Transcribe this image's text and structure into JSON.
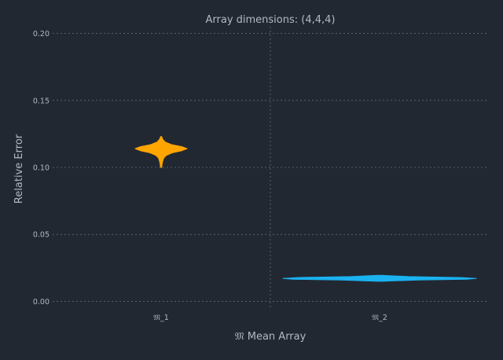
{
  "chart_data": {
    "type": "violin",
    "title": "Array dimensions: (4,4,4)",
    "xlabel": "𝔐 Mean Array",
    "ylabel": "Relative Error",
    "categories": [
      "𝔐_1",
      "𝔐_2"
    ],
    "ylim": [
      -0.005,
      0.205
    ],
    "yticks": [
      0.0,
      0.05,
      0.1,
      0.15,
      0.2
    ],
    "ytick_labels": [
      "0.00",
      "0.05",
      "0.10",
      "0.15",
      "0.20"
    ],
    "grid": true,
    "series": [
      {
        "category": "𝔐_1",
        "color": "#ffa500",
        "min": 0.1,
        "max": 0.123,
        "profile": [
          [
            0.1,
            0.02
          ],
          [
            0.104,
            0.05
          ],
          [
            0.107,
            0.1
          ],
          [
            0.109,
            0.2
          ],
          [
            0.111,
            0.45
          ],
          [
            0.1125,
            0.8
          ],
          [
            0.114,
            1.0
          ],
          [
            0.1155,
            0.8
          ],
          [
            0.117,
            0.4
          ],
          [
            0.119,
            0.15
          ],
          [
            0.121,
            0.06
          ],
          [
            0.123,
            0.02
          ]
        ]
      },
      {
        "category": "𝔐_2",
        "color": "#1ab2f0",
        "min": 0.015,
        "max": 0.0195,
        "profile": [
          [
            0.015,
            0.02
          ],
          [
            0.016,
            0.4
          ],
          [
            0.0165,
            0.9
          ],
          [
            0.0172,
            1.0
          ],
          [
            0.0178,
            0.85
          ],
          [
            0.0185,
            0.3
          ],
          [
            0.0195,
            0.02
          ]
        ]
      }
    ]
  }
}
